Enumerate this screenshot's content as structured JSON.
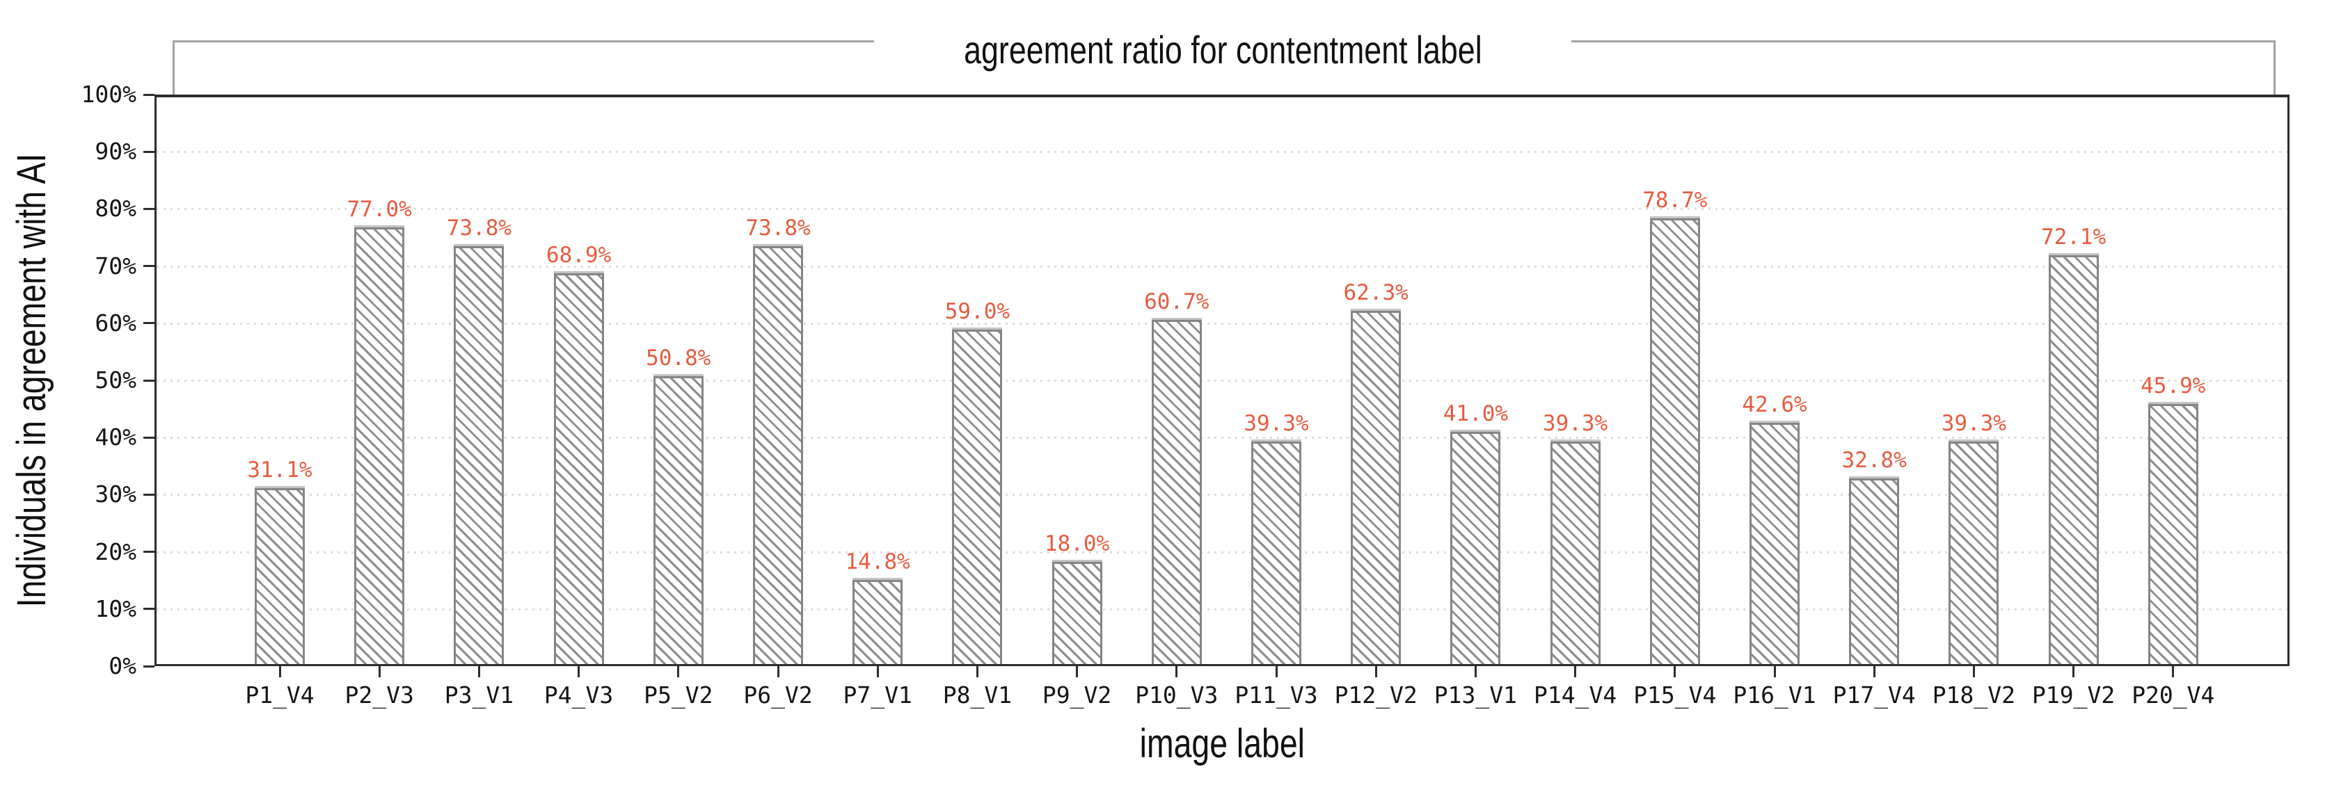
{
  "figure": {
    "background": "#ffffff"
  },
  "chart_data": {
    "type": "bar",
    "title": "agreement ratio for contentment label",
    "xlabel": "image label",
    "ylabel": "Individuals in agreement with AI",
    "categories": [
      "P1_V4",
      "P2_V3",
      "P3_V1",
      "P4_V3",
      "P5_V2",
      "P6_V2",
      "P7_V1",
      "P8_V1",
      "P9_V2",
      "P10_V3",
      "P11_V3",
      "P12_V2",
      "P13_V1",
      "P14_V4",
      "P15_V4",
      "P16_V1",
      "P17_V4",
      "P18_V2",
      "P19_V2",
      "P20_V4"
    ],
    "values": [
      31.1,
      77.0,
      73.8,
      68.9,
      50.8,
      73.8,
      14.8,
      59.0,
      18.0,
      60.7,
      39.3,
      62.3,
      41.0,
      39.3,
      78.7,
      42.6,
      32.8,
      39.3,
      72.1,
      45.9
    ],
    "value_labels": [
      "31.1%",
      "77.0%",
      "73.8%",
      "68.9%",
      "50.8%",
      "73.8%",
      "14.8%",
      "59.0%",
      "18.0%",
      "60.7%",
      "39.3%",
      "62.3%",
      "41.0%",
      "39.3%",
      "78.7%",
      "42.6%",
      "32.8%",
      "39.3%",
      "72.1%",
      "45.9%"
    ],
    "y_ticks": [
      "0%",
      "10%",
      "20%",
      "30%",
      "40%",
      "50%",
      "60%",
      "70%",
      "80%",
      "90%",
      "100%"
    ],
    "ylim": [
      0,
      100
    ],
    "grid": {
      "axis": "y",
      "style": "dotted",
      "step_percent": 10
    },
    "legend_position": "none",
    "colors": {
      "bar_fill": "#ffffff",
      "bar_edge": "#858585",
      "bar_hatch": "#8d8d8d",
      "bar_cap": "#c4c4c4",
      "value_label": "#e65c41",
      "axis_spine": "#2d2d2d",
      "tick_label": "#141414",
      "grid_line": "#dcdcdc",
      "bracket": "#a3a3a3"
    }
  }
}
